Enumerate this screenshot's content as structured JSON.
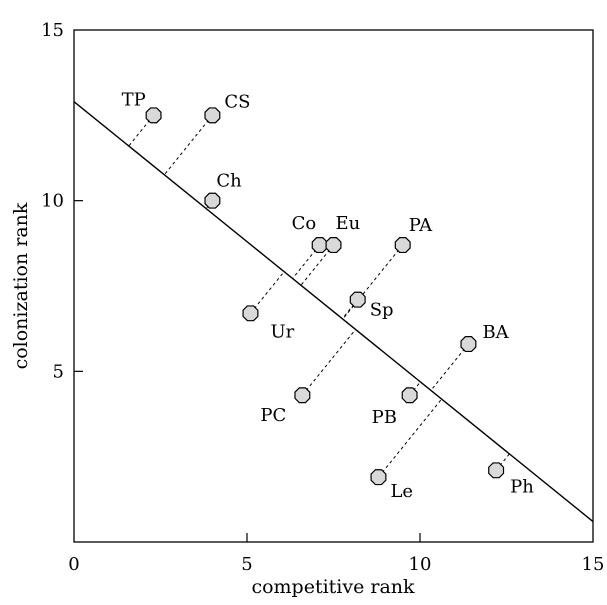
{
  "chart_data": {
    "type": "scatter",
    "title": "",
    "xlabel": "competitive rank",
    "ylabel": "colonization rank",
    "xlim": [
      0,
      15
    ],
    "ylim": [
      0,
      15
    ],
    "x_ticks": [
      0,
      5,
      10,
      15
    ],
    "y_ticks": [
      5,
      10,
      15
    ],
    "x_tick_labels": [
      "0",
      "5",
      "10",
      "15"
    ],
    "y_tick_labels": [
      "5",
      "10",
      "15"
    ],
    "grid": false,
    "legend": "none",
    "regression_line": {
      "x_start": 0,
      "y_start": 12.9,
      "x_end": 15,
      "y_end": 0.6
    },
    "marker": {
      "shape": "octagon",
      "fill": "#d9d9d9",
      "stroke": "#000000"
    },
    "line_color": "#000000",
    "points": [
      {
        "label": "TP",
        "x": 2.3,
        "y": 12.5
      },
      {
        "label": "CS",
        "x": 4.0,
        "y": 12.5
      },
      {
        "label": "Ch",
        "x": 4.0,
        "y": 10.0
      },
      {
        "label": "Co",
        "x": 7.1,
        "y": 8.7
      },
      {
        "label": "Eu",
        "x": 7.5,
        "y": 8.7
      },
      {
        "label": "PA",
        "x": 9.5,
        "y": 8.7
      },
      {
        "label": "Sp",
        "x": 8.2,
        "y": 7.1
      },
      {
        "label": "Ur",
        "x": 5.1,
        "y": 6.7
      },
      {
        "label": "BA",
        "x": 11.4,
        "y": 5.8
      },
      {
        "label": "PC",
        "x": 6.6,
        "y": 4.3
      },
      {
        "label": "PB",
        "x": 9.7,
        "y": 4.3
      },
      {
        "label": "Le",
        "x": 8.8,
        "y": 1.9
      },
      {
        "label": "Ph",
        "x": 12.2,
        "y": 2.1
      }
    ]
  }
}
